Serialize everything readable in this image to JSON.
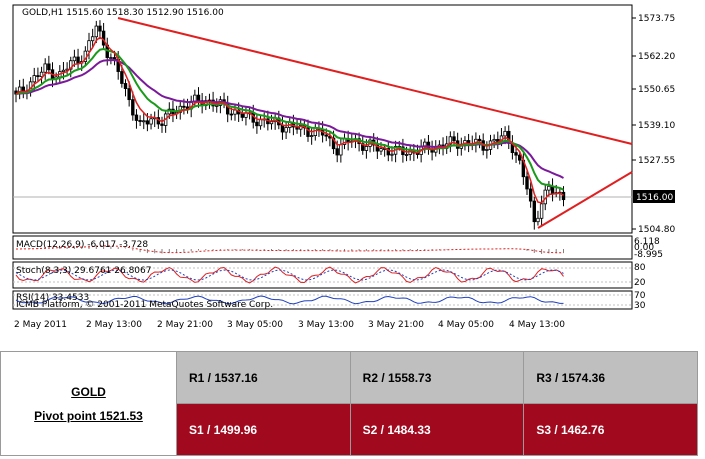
{
  "chart": {
    "header": "GOLD,H1  1515.60 1518.30 1512.90 1516.00",
    "price_levels": [
      "1573.75",
      "1562.20",
      "1550.65",
      "1539.10",
      "1527.55",
      "1516.00",
      "1504.80"
    ],
    "current_price": "1516.00",
    "time_labels": [
      "2 May 2011",
      "2 May 13:00",
      "2 May 21:00",
      "3 May 05:00",
      "3 May 13:00",
      "3 May 21:00",
      "4 May 05:00",
      "4 May 13:00"
    ],
    "macd_label": "MACD(12,26,9) -6.017 -3.728",
    "macd_scale": [
      "6.118",
      "0.00",
      "-8.995"
    ],
    "stoch_label": "Stoch(8,3,3) 29.6761 26.8067",
    "stoch_scale": [
      "80",
      "20"
    ],
    "rsi_label": "RSI(14) 33.4533",
    "rsi_scale": [
      "70",
      "30"
    ],
    "copyright": "ICMB Platform, © 2001-2011 MetaQuotes Software Corp."
  },
  "pivot": {
    "symbol": "GOLD",
    "pivot_point": "Pivot point 1521.53",
    "r1": "R1 / 1537.16",
    "r2": "R2 / 1558.73",
    "r3": "R3 / 1574.36",
    "s1": "S1 / 1499.96",
    "s2": "S2 / 1484.33",
    "s3": "S3 / 1462.76"
  },
  "colors": {
    "resistance_bg": "#bfbfbf",
    "support_bg": "#a10a1e",
    "trendline": "#e02020",
    "ma_fast": "#e02020",
    "ma_mid": "#1a9a1a",
    "ma_slow": "#7a1a9a"
  }
}
